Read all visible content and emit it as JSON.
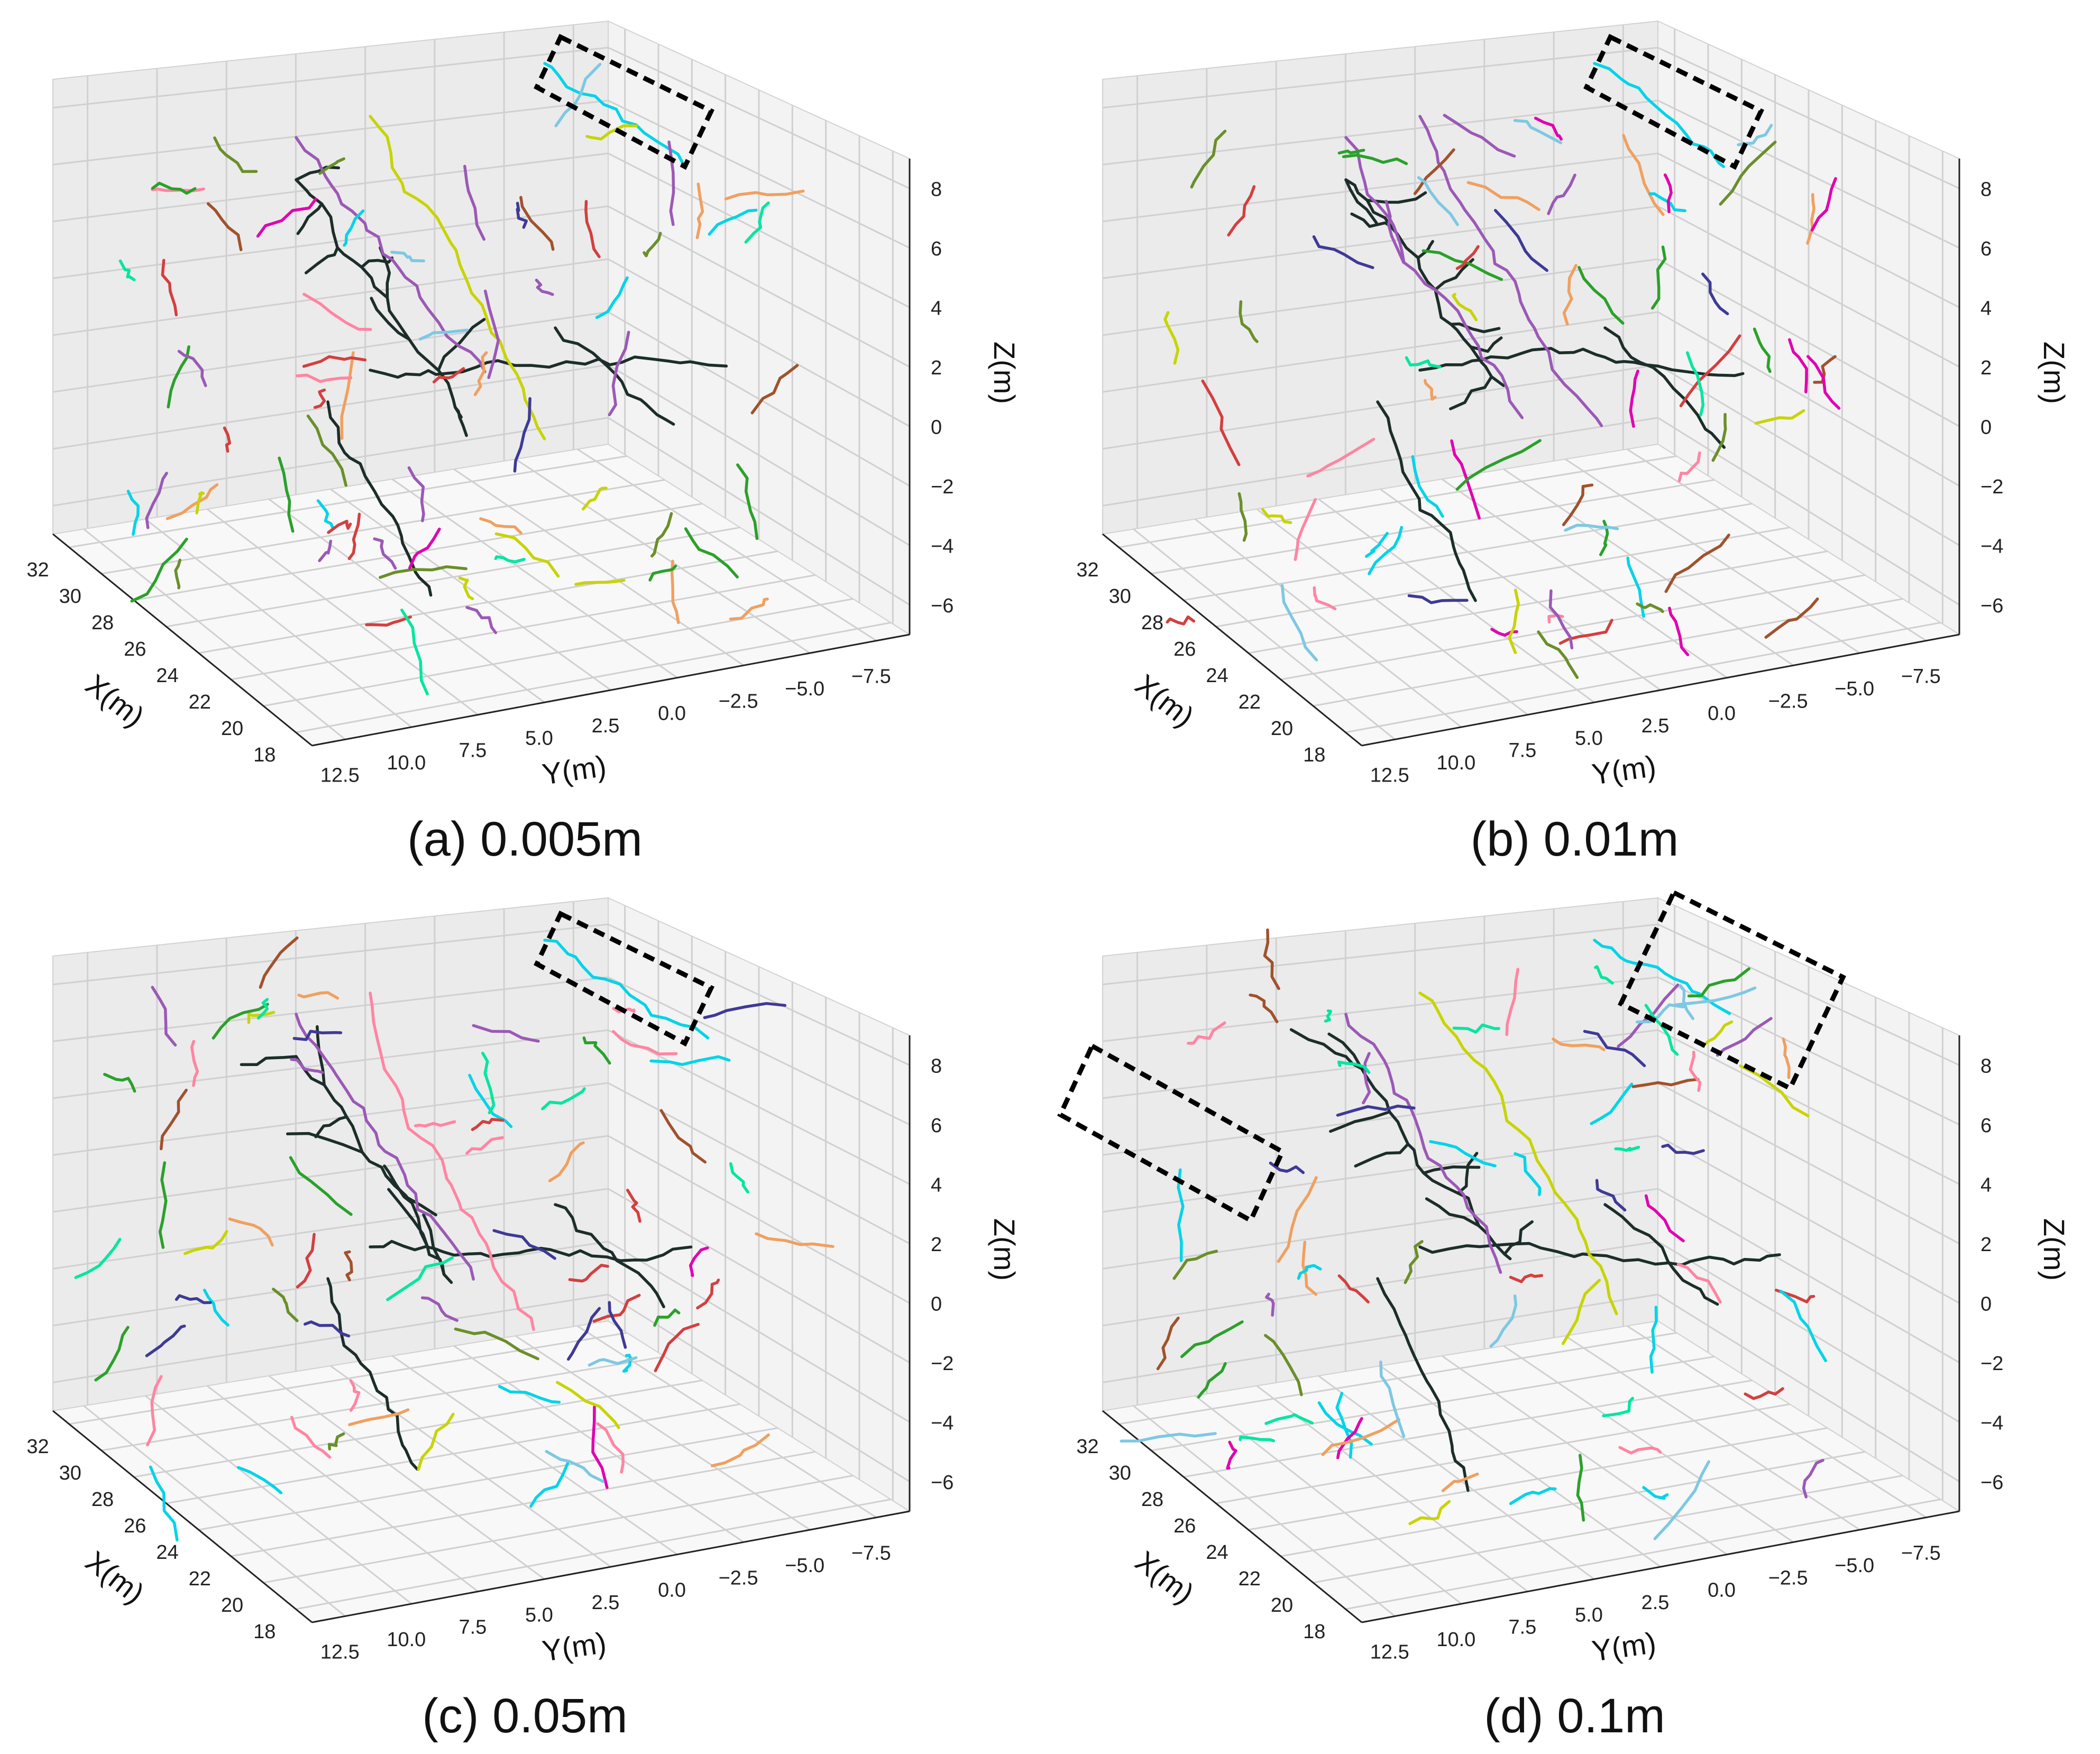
{
  "chart_data": [
    {
      "type": "scatter",
      "title": "",
      "caption": "(a) 0.005m",
      "xlabel": "X(m)",
      "ylabel": "Y(m)",
      "zlabel": "Z(m)",
      "x_ticks": [
        "32",
        "30",
        "28",
        "26",
        "24",
        "22",
        "20",
        "18"
      ],
      "y_ticks": [
        "12.5",
        "10.0",
        "7.5",
        "5.0",
        "2.5",
        "0.0",
        "−2.5",
        "−5.0",
        "−7.5"
      ],
      "z_ticks": [
        "8",
        "6",
        "4",
        "2",
        "0",
        "−2",
        "−4",
        "−6"
      ],
      "xlim": [
        17,
        33
      ],
      "ylim": [
        -8.5,
        13.5
      ],
      "zlim": [
        -7,
        9
      ],
      "grid": true,
      "highlight_boxes": 1
    },
    {
      "type": "scatter",
      "title": "",
      "caption": "(b) 0.01m",
      "xlabel": "X(m)",
      "ylabel": "Y(m)",
      "zlabel": "Z(m)",
      "x_ticks": [
        "32",
        "30",
        "28",
        "26",
        "24",
        "22",
        "20",
        "18"
      ],
      "y_ticks": [
        "12.5",
        "10.0",
        "7.5",
        "5.0",
        "2.5",
        "0.0",
        "−2.5",
        "−5.0",
        "−7.5"
      ],
      "z_ticks": [
        "8",
        "6",
        "4",
        "2",
        "0",
        "−2",
        "−4",
        "−6"
      ],
      "xlim": [
        17,
        33
      ],
      "ylim": [
        -8.5,
        13.5
      ],
      "zlim": [
        -7,
        9
      ],
      "grid": true,
      "highlight_boxes": 1
    },
    {
      "type": "scatter",
      "title": "",
      "caption": "(c) 0.05m",
      "xlabel": "X(m)",
      "ylabel": "Y(m)",
      "zlabel": "Z(m)",
      "x_ticks": [
        "32",
        "30",
        "28",
        "26",
        "24",
        "22",
        "20",
        "18"
      ],
      "y_ticks": [
        "12.5",
        "10.0",
        "7.5",
        "5.0",
        "2.5",
        "0.0",
        "−2.5",
        "−5.0",
        "−7.5"
      ],
      "z_ticks": [
        "8",
        "6",
        "4",
        "2",
        "0",
        "−2",
        "−4",
        "−6"
      ],
      "xlim": [
        17,
        33
      ],
      "ylim": [
        -8.5,
        13.5
      ],
      "zlim": [
        -7,
        9
      ],
      "grid": true,
      "highlight_boxes": 1
    },
    {
      "type": "scatter",
      "title": "",
      "caption": "(d) 0.1m",
      "xlabel": "X(m)",
      "ylabel": "Y(m)",
      "zlabel": "Z(m)",
      "x_ticks": [
        "32",
        "30",
        "28",
        "26",
        "24",
        "22",
        "20",
        "18"
      ],
      "y_ticks": [
        "12.5",
        "10.0",
        "7.5",
        "5.0",
        "2.5",
        "0.0",
        "−2.5",
        "−5.0",
        "−7.5"
      ],
      "z_ticks": [
        "8",
        "6",
        "4",
        "2",
        "0",
        "−2",
        "−4",
        "−6"
      ],
      "xlim": [
        17,
        33
      ],
      "ylim": [
        -8.5,
        13.5
      ],
      "zlim": [
        -7,
        9
      ],
      "grid": true,
      "highlight_boxes": 2
    }
  ],
  "palette": [
    "#1c2e2a",
    "#00d4e8",
    "#c8d400",
    "#9b59b6",
    "#ff85a2",
    "#6a8f2a",
    "#3f3a96",
    "#d43f3f",
    "#00e6a0",
    "#e000b0",
    "#f0a060",
    "#2aa12a",
    "#7ec8e3",
    "#a0522d"
  ]
}
